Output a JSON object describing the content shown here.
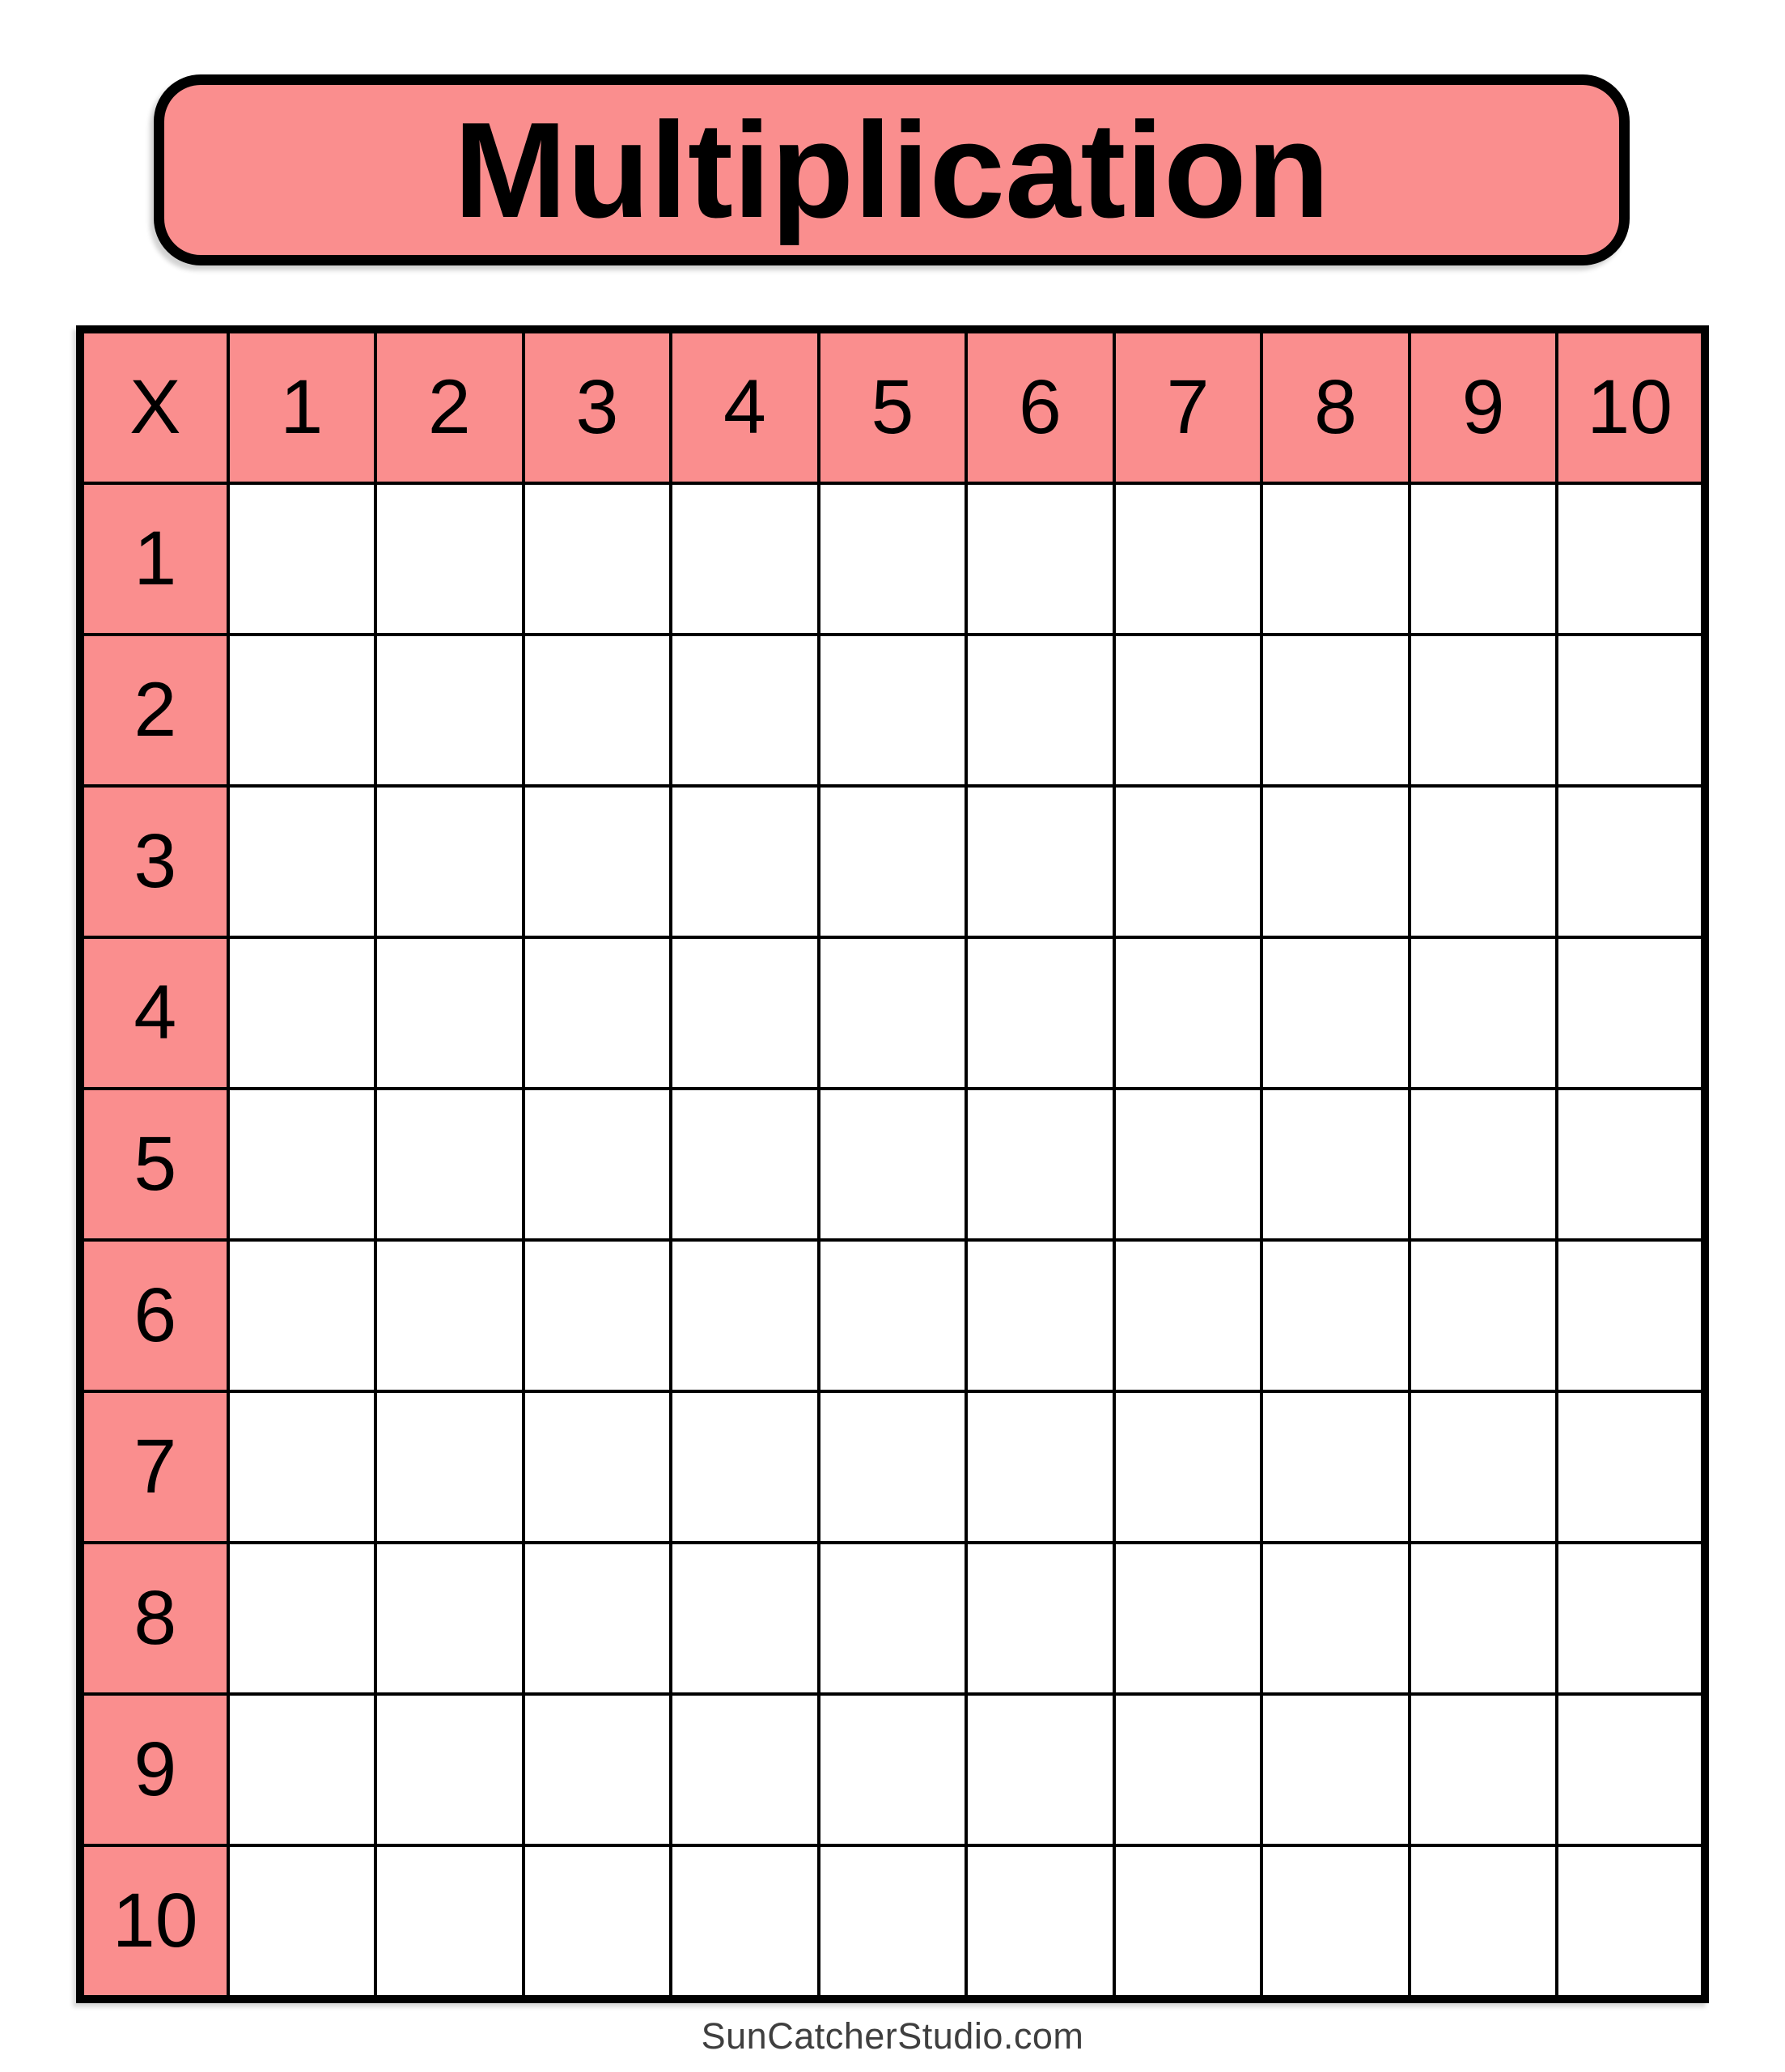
{
  "title": "Multiplication",
  "table": {
    "corner": "X",
    "col_headers": [
      "1",
      "2",
      "3",
      "4",
      "5",
      "6",
      "7",
      "8",
      "9",
      "10"
    ],
    "row_headers": [
      "1",
      "2",
      "3",
      "4",
      "5",
      "6",
      "7",
      "8",
      "9",
      "10"
    ]
  },
  "footer": "SunCatcherStudio.com",
  "colors": {
    "header_fill": "#FA8E8E",
    "grid_line": "#000000",
    "cell_fill": "#FFFFFF",
    "banner_fill": "#FA8E8E",
    "footer_text": "#3F3F3F"
  }
}
